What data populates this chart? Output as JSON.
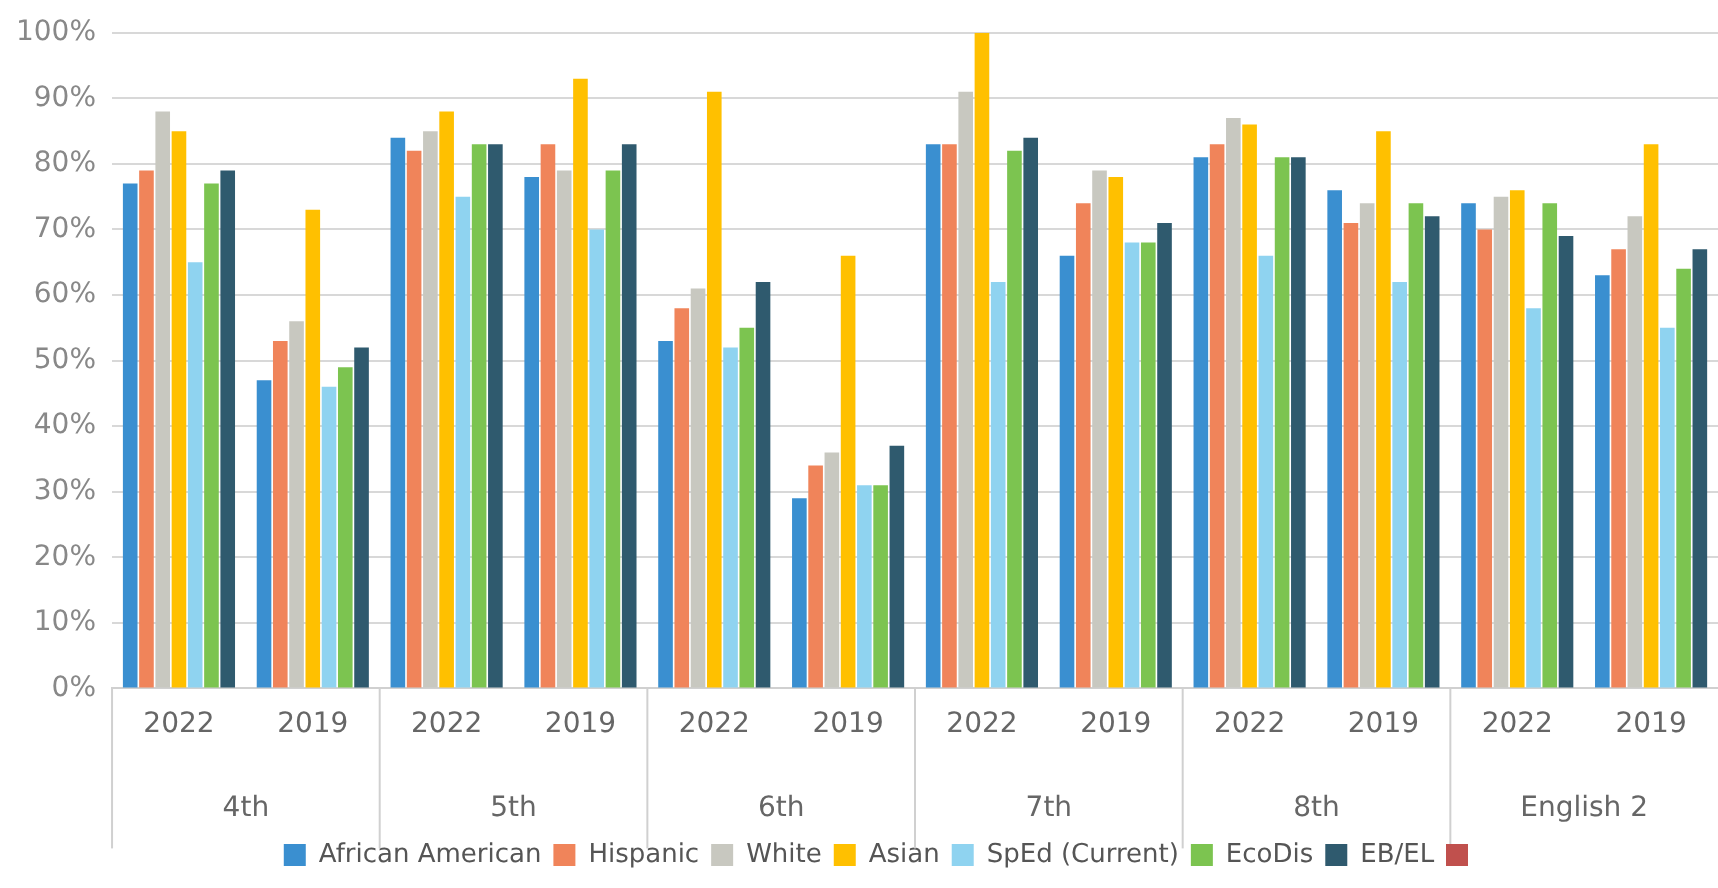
{
  "chart_data": {
    "type": "bar",
    "categories": [
      "2022",
      "2019",
      "2022",
      "2019",
      "2022",
      "2019",
      "2022",
      "2019",
      "2022",
      "2019",
      "2022",
      "2019"
    ],
    "annotations": [
      "4th",
      "5th",
      "6th",
      "7th",
      "8th",
      "English 2"
    ],
    "series": [
      {
        "name": "African American",
        "color": "#3a8fd0",
        "values": [
          77,
          47,
          84,
          78,
          53,
          29,
          83,
          66,
          81,
          76,
          74,
          63
        ]
      },
      {
        "name": "Hispanic",
        "color": "#f0845a",
        "values": [
          79,
          53,
          82,
          83,
          58,
          34,
          83,
          74,
          83,
          71,
          70,
          67
        ]
      },
      {
        "name": "White",
        "color": "#c8c8c0",
        "values": [
          88,
          56,
          85,
          79,
          61,
          36,
          91,
          79,
          87,
          74,
          75,
          72
        ]
      },
      {
        "name": "Asian",
        "color": "#ffc000",
        "values": [
          85,
          73,
          88,
          93,
          91,
          66,
          100,
          78,
          86,
          85,
          76,
          83
        ]
      },
      {
        "name": "SpEd (Current)",
        "color": "#8fd3f0",
        "values": [
          65,
          46,
          75,
          70,
          52,
          31,
          62,
          68,
          66,
          62,
          58,
          55
        ]
      },
      {
        "name": "EcoDis",
        "color": "#7cc450",
        "values": [
          77,
          49,
          83,
          79,
          55,
          31,
          82,
          68,
          81,
          74,
          74,
          64
        ]
      },
      {
        "name": "EB/EL",
        "color": "#2f5a6e",
        "values": [
          79,
          52,
          83,
          83,
          62,
          37,
          84,
          71,
          81,
          72,
          69,
          67
        ]
      }
    ],
    "ylim": [
      0,
      100
    ],
    "yticks": [
      {
        "value": 0,
        "label": "0%"
      },
      {
        "value": 10,
        "label": "10%"
      },
      {
        "value": 20,
        "label": "20%"
      },
      {
        "value": 30,
        "label": "30%"
      },
      {
        "value": 40,
        "label": "40%"
      },
      {
        "value": 50,
        "label": "50%"
      },
      {
        "value": 60,
        "label": "60%"
      },
      {
        "value": 70,
        "label": "70%"
      },
      {
        "value": 80,
        "label": "80%"
      },
      {
        "value": 90,
        "label": "90%"
      },
      {
        "value": 100,
        "label": "100%"
      }
    ],
    "grid": "y",
    "legend": "bottom"
  }
}
